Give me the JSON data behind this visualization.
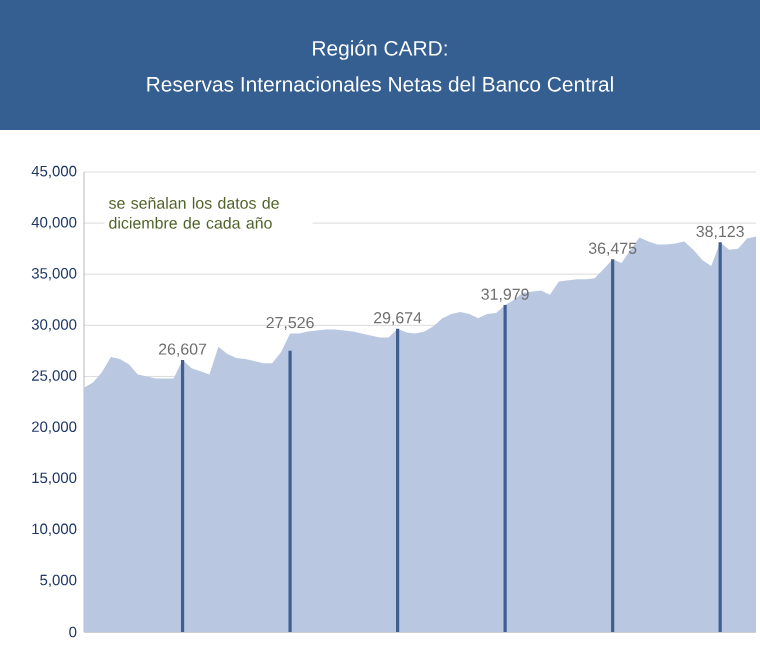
{
  "chart_data": {
    "type": "area",
    "title": "Región CARD:",
    "subtitle": "Reservas Internacionales Netas del Banco Central",
    "categories": [
      null,
      null,
      null,
      null,
      null,
      null,
      null,
      null,
      null,
      null,
      null,
      null,
      null,
      null,
      null,
      null,
      null,
      null,
      null,
      null,
      null,
      null,
      null,
      null,
      null,
      null,
      null,
      null,
      null,
      null,
      null,
      null,
      null,
      null,
      null,
      null,
      null,
      null,
      null,
      null,
      null,
      null,
      null,
      null,
      null,
      null,
      null,
      null,
      null,
      null,
      null,
      null,
      null,
      null,
      null,
      null,
      null,
      null,
      null,
      null,
      null,
      null,
      null,
      null,
      null,
      null,
      null,
      null,
      null,
      null,
      null,
      null,
      null,
      null,
      null,
      null
    ],
    "series": [
      {
        "color": "#b9c7e1",
        "values": [
          23900,
          24400,
          25400,
          26900,
          26700,
          26200,
          25200,
          25000,
          24800,
          24800,
          24800,
          26607,
          25800,
          25500,
          25200,
          27900,
          27200,
          26800,
          26700,
          26500,
          26300,
          26300,
          27400,
          29200,
          29200,
          29400,
          29500,
          29600,
          29600,
          29500,
          29400,
          29200,
          29000,
          28800,
          28800,
          29674,
          29300,
          29200,
          29400,
          29900,
          30700,
          31100,
          31300,
          31100,
          30700,
          31100,
          31200,
          31979,
          32500,
          33200,
          33300,
          33400,
          33000,
          34300,
          34400,
          34500,
          34500,
          34600,
          35500,
          36475,
          36100,
          37400,
          38600,
          38200,
          37900,
          37900,
          38000,
          38200,
          37400,
          36400,
          35800,
          38123,
          37400,
          37500,
          38500,
          38700
        ]
      },
      {
        "type": "bar",
        "color": "#3f5f91",
        "values": [
          null,
          null,
          null,
          null,
          null,
          null,
          null,
          null,
          null,
          null,
          null,
          26607,
          null,
          null,
          null,
          null,
          null,
          null,
          null,
          null,
          null,
          null,
          null,
          27526,
          null,
          null,
          null,
          null,
          null,
          null,
          null,
          null,
          null,
          null,
          null,
          29674,
          null,
          null,
          null,
          null,
          null,
          null,
          null,
          null,
          null,
          null,
          null,
          31979,
          null,
          null,
          null,
          null,
          null,
          null,
          null,
          null,
          null,
          null,
          null,
          36475,
          null,
          null,
          null,
          null,
          null,
          null,
          null,
          null,
          null,
          null,
          null,
          38123,
          null,
          null,
          null,
          null
        ],
        "value_labels": [
          null,
          null,
          null,
          null,
          null,
          null,
          null,
          null,
          null,
          null,
          null,
          "26,607",
          null,
          null,
          null,
          null,
          null,
          null,
          null,
          null,
          null,
          null,
          null,
          "27,526",
          null,
          null,
          null,
          null,
          null,
          null,
          null,
          null,
          null,
          null,
          null,
          "29,674",
          null,
          null,
          null,
          null,
          null,
          null,
          null,
          null,
          null,
          null,
          null,
          "31,979",
          null,
          null,
          null,
          null,
          null,
          null,
          null,
          null,
          null,
          null,
          null,
          "36,475",
          null,
          null,
          null,
          null,
          null,
          null,
          null,
          null,
          null,
          null,
          null,
          "38,123",
          null,
          null,
          null,
          null
        ]
      }
    ],
    "ylim": [
      0,
      45000
    ],
    "yticks": [
      0,
      {
        "value": 5000,
        "label": "5,000"
      },
      {
        "value": 10000,
        "label": "10,000"
      },
      {
        "value": 15000,
        "label": "15,000"
      },
      {
        "value": 20000,
        "label": "20,000"
      },
      {
        "value": 25000,
        "label": "25,000"
      },
      {
        "value": 30000,
        "label": "30,000"
      },
      {
        "value": 35000,
        "label": "35,000"
      },
      {
        "value": 40000,
        "label": "40,000"
      },
      {
        "value": 45000,
        "label": "45,000"
      }
    ],
    "grid": "y",
    "annotations": [
      "se señalan los datos de diciembre de cada año"
    ]
  }
}
